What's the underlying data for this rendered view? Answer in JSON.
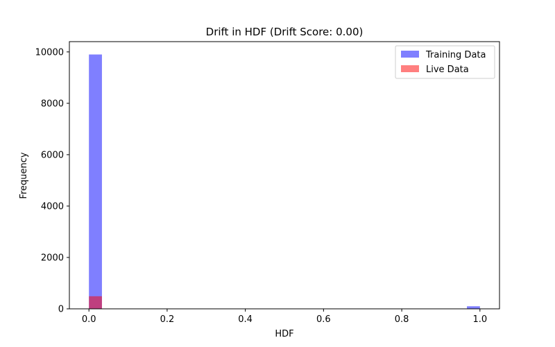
{
  "chart_data": {
    "type": "bar",
    "title": "Drift in HDF (Drift Score: 0.00)",
    "xlabel": "HDF",
    "ylabel": "Frequency",
    "xlim": [
      -0.05,
      1.05
    ],
    "ylim": [
      0,
      10400
    ],
    "xticks": [
      "0.0",
      "0.2",
      "0.4",
      "0.6",
      "0.8",
      "1.0"
    ],
    "yticks": [
      "0",
      "2000",
      "4000",
      "6000",
      "8000",
      "10000"
    ],
    "grid": false,
    "legend_position": "top-right",
    "bin_width": 0.0333,
    "series": [
      {
        "name": "Training Data",
        "color": "#0000ff",
        "opacity": 0.5,
        "bins": [
          {
            "x_start": 0.0,
            "x_end": 0.0333,
            "value": 9900
          },
          {
            "x_start": 0.9667,
            "x_end": 1.0,
            "value": 100
          }
        ]
      },
      {
        "name": "Live Data",
        "color": "#ff0000",
        "opacity": 0.5,
        "bins": [
          {
            "x_start": 0.0,
            "x_end": 0.0333,
            "value": 490
          }
        ]
      }
    ]
  }
}
